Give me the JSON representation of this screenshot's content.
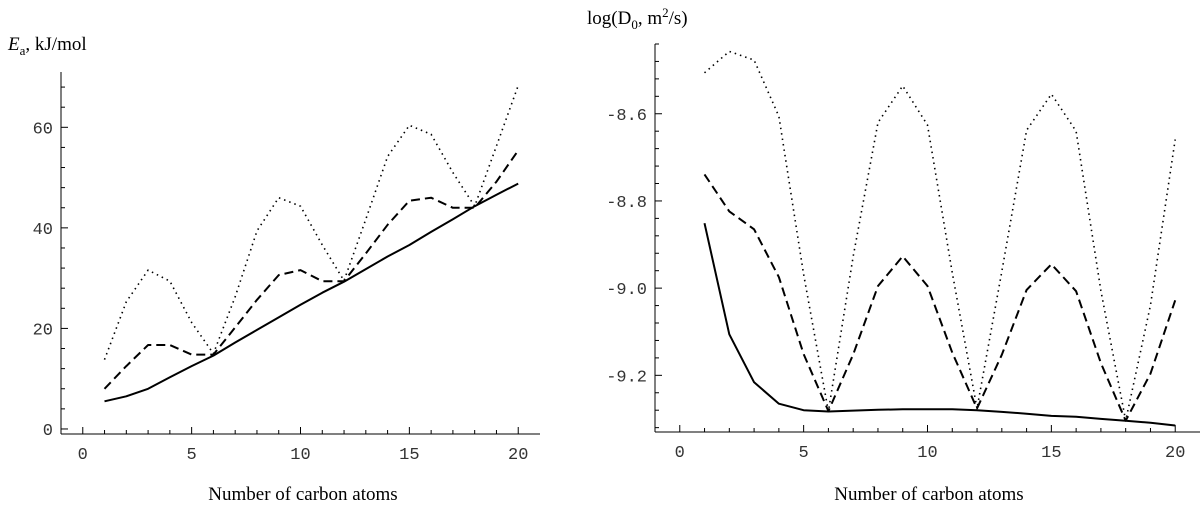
{
  "chart_data": [
    {
      "type": "line",
      "ylabel_main": "E",
      "ylabel_sub": "a",
      "ylabel_rest": ", kJ/mol",
      "xlabel": "Number of carbon atoms",
      "xlim": [
        -1,
        21
      ],
      "ylim": [
        -1,
        71
      ],
      "xticks": [
        0,
        5,
        10,
        15,
        20
      ],
      "yticks": [
        0,
        20,
        40,
        60
      ],
      "ytick_labels": [
        "0",
        "20",
        "40",
        "60"
      ],
      "series": [
        {
          "style": "solid",
          "x": [
            1,
            2,
            3,
            4,
            5,
            6,
            7,
            8,
            9,
            10,
            11,
            12,
            13,
            14,
            15,
            16,
            17,
            18,
            19,
            20
          ],
          "y": [
            5.5,
            6.5,
            8,
            10.3,
            12.5,
            14.6,
            17.2,
            19.7,
            22.2,
            24.7,
            27.1,
            29.3,
            31.8,
            34.3,
            36.6,
            39.2,
            41.7,
            44.3,
            46.6,
            48.8
          ]
        },
        {
          "style": "dashed",
          "x": [
            1,
            2,
            3,
            4,
            5,
            6,
            7,
            8,
            9,
            10,
            11,
            12,
            13,
            14,
            15,
            16,
            17,
            18,
            19,
            20
          ],
          "y": [
            8,
            12.5,
            16.7,
            16.7,
            14.8,
            14.8,
            20.2,
            25.7,
            30.6,
            31.6,
            29.4,
            29.4,
            34.9,
            40.6,
            45.4,
            46,
            44,
            44,
            49.2,
            55.4
          ]
        },
        {
          "style": "dotted",
          "x": [
            1,
            2,
            3,
            4,
            5,
            6,
            7,
            8,
            9,
            10,
            11,
            12,
            13,
            14,
            15,
            16,
            17,
            18,
            19,
            20
          ],
          "y": [
            13.8,
            25.3,
            31.6,
            29.4,
            21.2,
            15,
            26.3,
            39.4,
            46,
            44.3,
            36.6,
            29.5,
            41.7,
            54.2,
            60.4,
            58.6,
            51,
            44.3,
            56.3,
            68.3
          ]
        }
      ]
    },
    {
      "type": "line",
      "ylabel_main": "log(D",
      "ylabel_sub": "0",
      "ylabel_mid": ", m",
      "ylabel_sup": "2",
      "ylabel_rest": "/s)",
      "xlabel": "Number of carbon atoms",
      "xlim": [
        -1,
        21
      ],
      "ylim": [
        -9.33,
        -8.44
      ],
      "xticks": [
        0,
        5,
        10,
        15,
        20
      ],
      "yticks": [
        -9.2,
        -9.0,
        -8.8,
        -8.6
      ],
      "ytick_labels": [
        "-9.2",
        "-9.0",
        "-8.8",
        "-8.6"
      ],
      "series": [
        {
          "style": "solid",
          "x": [
            1,
            2,
            3,
            4,
            5,
            6,
            7,
            8,
            9,
            10,
            11,
            12,
            13,
            14,
            15,
            16,
            17,
            18,
            19,
            20
          ],
          "y": [
            -8.851,
            -9.106,
            -9.216,
            -9.265,
            -9.28,
            -9.283,
            -9.281,
            -9.279,
            -9.278,
            -9.278,
            -9.278,
            -9.28,
            -9.284,
            -9.288,
            -9.293,
            -9.295,
            -9.3,
            -9.304,
            -9.309,
            -9.315
          ]
        },
        {
          "style": "dashed",
          "x": [
            1,
            2,
            3,
            4,
            5,
            6,
            7,
            8,
            9,
            10,
            11,
            12,
            13,
            14,
            15,
            16,
            17,
            18,
            19,
            20
          ],
          "y": [
            -8.739,
            -8.824,
            -8.865,
            -8.975,
            -9.151,
            -9.282,
            -9.152,
            -8.995,
            -8.927,
            -8.995,
            -9.148,
            -9.276,
            -9.153,
            -9.004,
            -8.945,
            -9.007,
            -9.172,
            -9.304,
            -9.196,
            -9.028
          ]
        },
        {
          "style": "dotted",
          "x": [
            1,
            2,
            3,
            4,
            5,
            6,
            7,
            8,
            9,
            10,
            11,
            12,
            13,
            14,
            15,
            16,
            17,
            18,
            19,
            20
          ],
          "y": [
            -8.506,
            -8.457,
            -8.477,
            -8.606,
            -8.968,
            -9.283,
            -8.927,
            -8.62,
            -8.536,
            -8.626,
            -8.965,
            -9.276,
            -8.962,
            -8.638,
            -8.555,
            -8.64,
            -9.006,
            -9.304,
            -9.039,
            -8.659
          ]
        }
      ]
    }
  ]
}
